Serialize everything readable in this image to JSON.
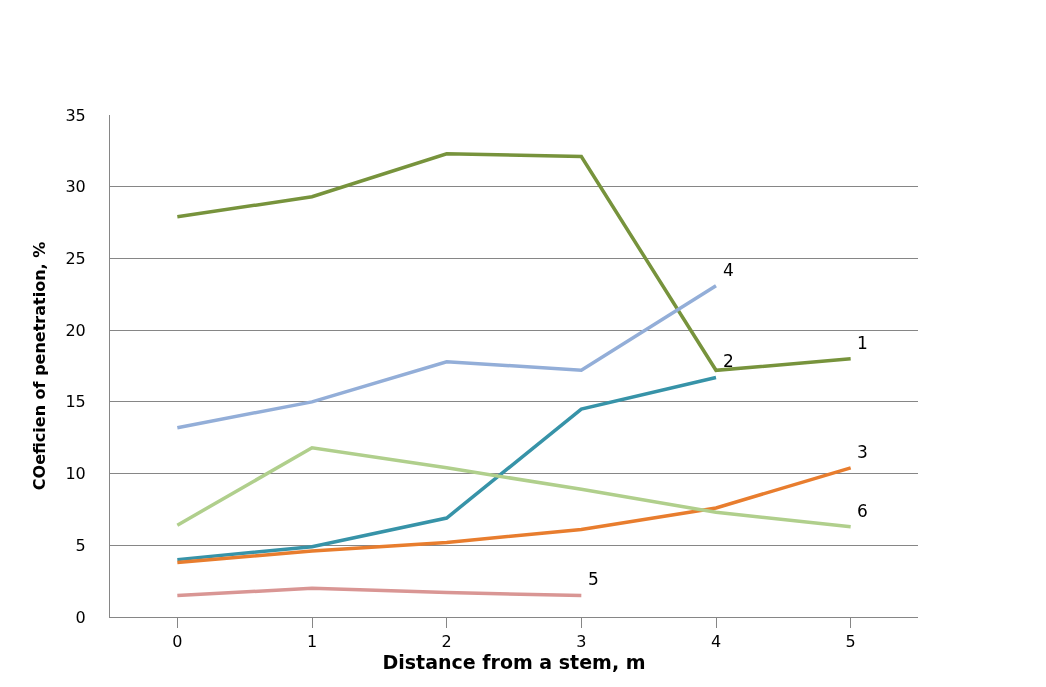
{
  "chart_data": {
    "type": "line",
    "xlabel": "Distance from a stem, m",
    "ylabel": "COeficien of penetration, %",
    "x": [
      0,
      1,
      2,
      3,
      4,
      5
    ],
    "xlim": [
      -0.5,
      5.5
    ],
    "xticks": [
      0,
      1,
      2,
      3,
      4,
      5
    ],
    "ylim": [
      0,
      35
    ],
    "yticks": [
      0,
      5,
      10,
      15,
      20,
      25,
      30,
      35
    ],
    "grid": "y",
    "legend": false,
    "marker": "none",
    "line_style": "solid",
    "series": [
      {
        "name": "1",
        "color": "#77933c",
        "values": [
          27.9,
          29.3,
          32.3,
          32.1,
          17.2,
          18.0
        ]
      },
      {
        "name": "2",
        "color": "#3793a8",
        "values": [
          4.0,
          4.9,
          6.9,
          14.5,
          16.7,
          null
        ]
      },
      {
        "name": "3",
        "color": "#e87d2e",
        "values": [
          3.8,
          4.6,
          5.2,
          6.1,
          7.6,
          10.4
        ]
      },
      {
        "name": "4",
        "color": "#93aed8",
        "values": [
          13.2,
          15.0,
          17.8,
          17.2,
          23.1,
          null
        ]
      },
      {
        "name": "5",
        "color": "#d99694",
        "values": [
          1.5,
          2.0,
          1.7,
          1.5,
          null,
          null
        ]
      },
      {
        "name": "6",
        "color": "#b0cf8c",
        "values": [
          6.4,
          11.8,
          10.4,
          8.9,
          7.3,
          6.3
        ]
      }
    ]
  }
}
